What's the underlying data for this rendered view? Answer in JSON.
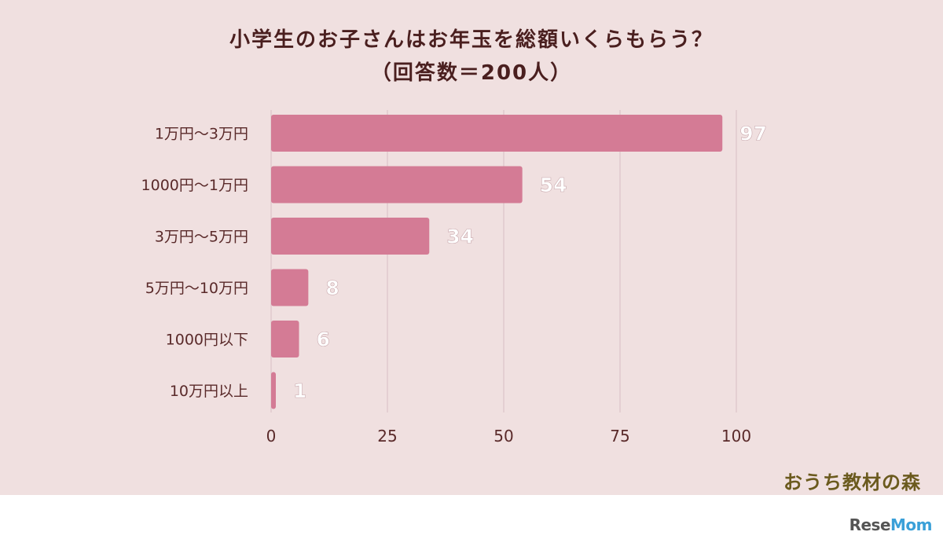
{
  "chart_data": {
    "type": "bar",
    "orientation": "horizontal",
    "title": "小学生のお子さんはお年玉を総額いくらもらう？",
    "subtitle": "（回答数＝200人）",
    "categories": [
      "1万円～3万円",
      "1000円～1万円",
      "3万円～5万円",
      "5万円～10万円",
      "1000円以下",
      "10万円以上"
    ],
    "values": [
      97,
      54,
      34,
      8,
      6,
      1
    ],
    "xlim": [
      0,
      100
    ],
    "xticks": [
      0,
      25,
      50,
      75,
      100
    ],
    "xlabel": "",
    "ylabel": "",
    "grid": true,
    "colors": {
      "bar": "#d47b95",
      "grid": "#dcc4c8",
      "tick_label": "#5a2a2a",
      "value_label": "#ffffff"
    }
  },
  "branding": {
    "logo_text": "おうち教材の森",
    "footer_logo_a": "Rese",
    "footer_logo_b": "Mom"
  }
}
